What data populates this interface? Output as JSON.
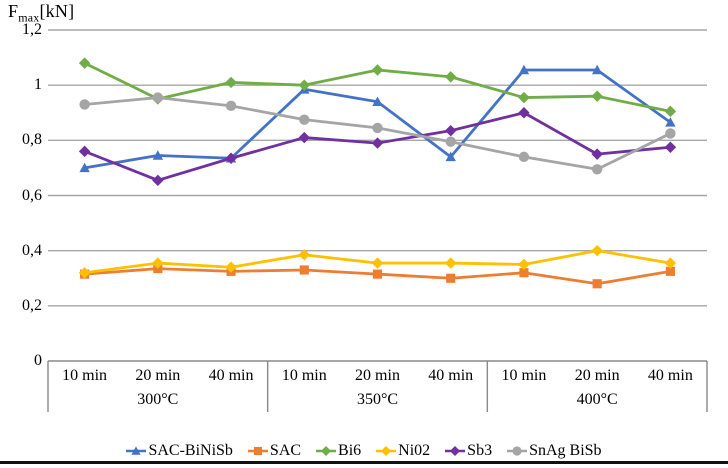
{
  "figure": {
    "title_prefix": "F",
    "title_sub": "max",
    "title_unit": "[kN]"
  },
  "chart_data": {
    "type": "line",
    "title": "Fmax [kN]",
    "ylabel": "Fmax [kN]",
    "xlabel": "",
    "ylim": [
      0,
      1.2
    ],
    "grid": true,
    "legend_position": "bottom",
    "yticks": [
      1.2,
      1.0,
      0.8,
      0.6,
      0.4,
      0.2,
      0
    ],
    "ytick_labels": [
      "1,2",
      "1",
      "0,8",
      "0,6",
      "0,4",
      "0,2",
      "0"
    ],
    "time_labels": [
      "10 min",
      "20 min",
      "40 min"
    ],
    "temperature_groups": [
      "300°C",
      "350°C",
      "400°C"
    ],
    "series": [
      {
        "name": "SAC-BiNiSb",
        "color": "#4472C4",
        "marker": "triangle",
        "values": [
          0.7,
          0.745,
          0.735,
          0.985,
          0.94,
          0.74,
          1.055,
          1.055,
          0.865
        ]
      },
      {
        "name": "SAC",
        "color": "#ED7D31",
        "marker": "square",
        "values": [
          0.315,
          0.335,
          0.325,
          0.33,
          0.315,
          0.3,
          0.32,
          0.28,
          0.325
        ]
      },
      {
        "name": "Bi6",
        "color": "#70AD47",
        "marker": "diamond",
        "values": [
          1.08,
          0.95,
          1.01,
          1.0,
          1.055,
          1.03,
          0.955,
          0.96,
          0.905
        ]
      },
      {
        "name": "Ni02",
        "color": "#FFC000",
        "marker": "diamond",
        "values": [
          0.32,
          0.355,
          0.34,
          0.385,
          0.355,
          0.355,
          0.35,
          0.4,
          0.355
        ]
      },
      {
        "name": "Sb3",
        "color": "#7030A0",
        "marker": "diamond",
        "values": [
          0.76,
          0.655,
          0.735,
          0.81,
          0.79,
          0.835,
          0.9,
          0.75,
          0.775
        ]
      },
      {
        "name": "SnAg BiSb",
        "color": "#A5A5A5",
        "marker": "circle",
        "values": [
          0.93,
          0.955,
          0.925,
          0.875,
          0.845,
          0.795,
          0.74,
          0.695,
          0.825
        ]
      }
    ],
    "gridline_color": "#A6A6A6",
    "axis_box_color": "#898989"
  }
}
